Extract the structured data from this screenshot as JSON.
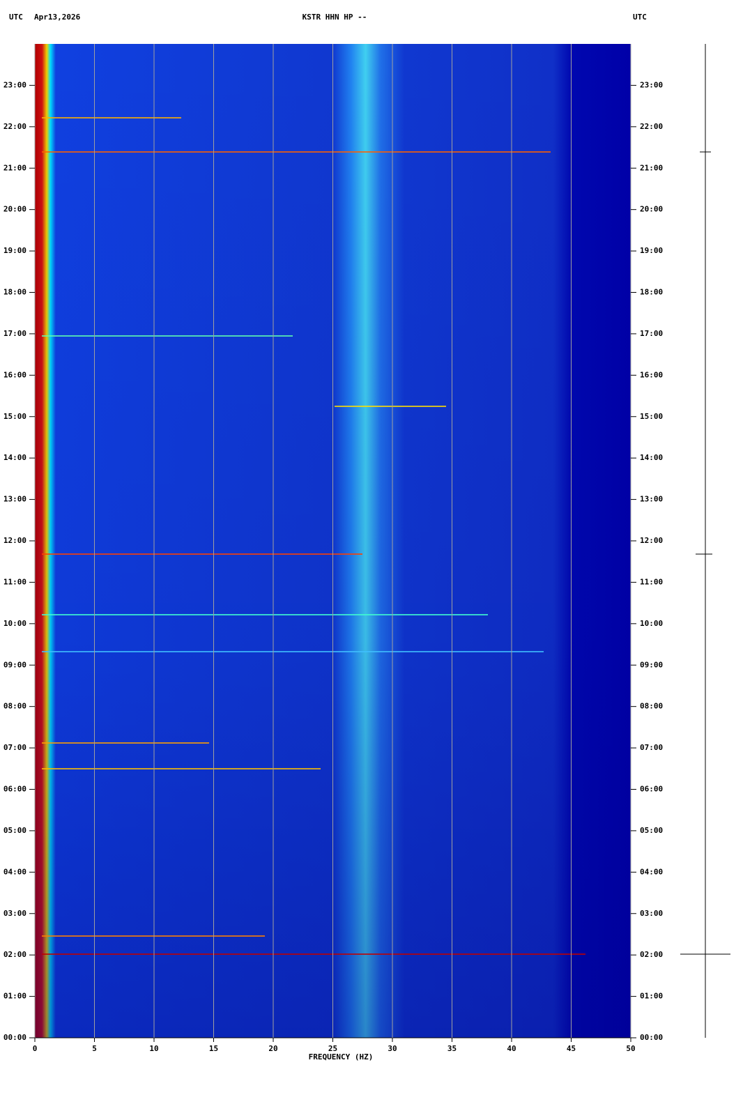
{
  "chart_data": {
    "type": "spectrogram",
    "title": "KSTR HHN HP --",
    "left_label": "UTC",
    "date": "Apr13,2026",
    "right_label": "UTC",
    "x_label": "FREQUENCY (HZ)",
    "xlim": [
      0,
      50
    ],
    "xticks": [
      0,
      5,
      10,
      15,
      20,
      25,
      30,
      35,
      40,
      45,
      50
    ],
    "ylim": [
      0,
      24
    ],
    "yticks": [
      {
        "value": 0,
        "label": "00:00"
      },
      {
        "value": 1,
        "label": "01:00"
      },
      {
        "value": 2,
        "label": "02:00"
      },
      {
        "value": 3,
        "label": "03:00"
      },
      {
        "value": 4,
        "label": "04:00"
      },
      {
        "value": 5,
        "label": "05:00"
      },
      {
        "value": 6,
        "label": "06:00"
      },
      {
        "value": 7,
        "label": "07:00"
      },
      {
        "value": 8,
        "label": "08:00"
      },
      {
        "value": 9,
        "label": "09:00"
      },
      {
        "value": 10,
        "label": "10:00"
      },
      {
        "value": 11,
        "label": "11:00"
      },
      {
        "value": 12,
        "label": "12:00"
      },
      {
        "value": 13,
        "label": "13:00"
      },
      {
        "value": 14,
        "label": "14:00"
      },
      {
        "value": 15,
        "label": "15:00"
      },
      {
        "value": 16,
        "label": "16:00"
      },
      {
        "value": 17,
        "label": "17:00"
      },
      {
        "value": 18,
        "label": "18:00"
      },
      {
        "value": 19,
        "label": "19:00"
      },
      {
        "value": 20,
        "label": "20:00"
      },
      {
        "value": 21,
        "label": "21:00"
      },
      {
        "value": 22,
        "label": "22:00"
      },
      {
        "value": 23,
        "label": "23:00"
      }
    ],
    "grid": true,
    "grid_color": "#a0a0a0"
  }
}
